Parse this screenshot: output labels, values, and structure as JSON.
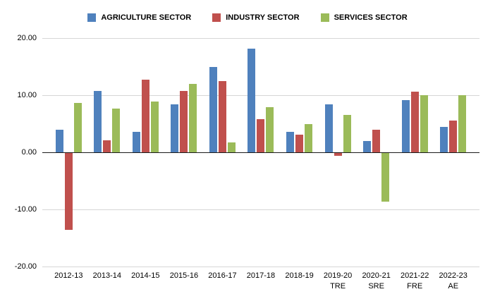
{
  "chart_data": {
    "type": "bar",
    "title": "",
    "xlabel": "",
    "ylabel": "",
    "categories": [
      "2012-13",
      "2013-14",
      "2014-15",
      "2015-16",
      "2016-17",
      "2017-18",
      "2018-19",
      "2019-20 TRE",
      "2020-21 SRE",
      "2021-22 FRE",
      "2022-23 AE"
    ],
    "category_lines": [
      [
        "2012-13"
      ],
      [
        "2013-14"
      ],
      [
        "2014-15"
      ],
      [
        "2015-16"
      ],
      [
        "2016-17"
      ],
      [
        "2017-18"
      ],
      [
        "2018-19"
      ],
      [
        "2019-20",
        "TRE"
      ],
      [
        "2020-21",
        "SRE"
      ],
      [
        "2021-22",
        "FRE"
      ],
      [
        "2022-23",
        "AE"
      ]
    ],
    "series": [
      {
        "name": "AGRICULTURE SECTOR",
        "color": "#4f81bd",
        "values": [
          4.0,
          10.8,
          3.6,
          8.4,
          15.0,
          18.1,
          3.6,
          8.4,
          2.0,
          9.1,
          4.5
        ]
      },
      {
        "name": "INDUSTRY SECTOR",
        "color": "#c0504d",
        "values": [
          -13.5,
          2.1,
          12.7,
          10.8,
          12.5,
          5.8,
          3.1,
          -0.5,
          3.9,
          10.6,
          5.6
        ]
      },
      {
        "name": "SERVICES SECTOR",
        "color": "#9bbb59",
        "values": [
          8.7,
          7.7,
          8.9,
          12.0,
          1.7,
          7.9,
          4.9,
          6.5,
          -8.5,
          10.0,
          10.0
        ]
      }
    ],
    "ylim": [
      -20,
      20
    ],
    "yticks": [
      20,
      10,
      0,
      -10,
      -20
    ],
    "ytick_labels": [
      "20.00",
      "10.00",
      "0.00",
      "-10.00",
      "-20.00"
    ],
    "grid": true,
    "legend_position": "top"
  },
  "colors": {
    "background": "#ffffff",
    "gridline": "#d6d6d6",
    "zero_axis": "#1a1a1a",
    "text": "#000000"
  }
}
